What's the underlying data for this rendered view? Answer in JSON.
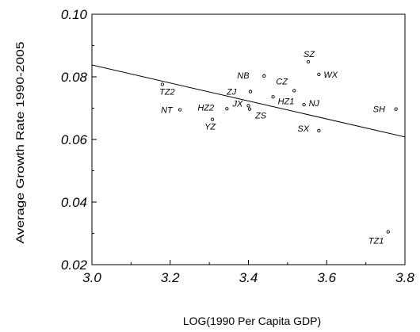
{
  "chart_data": {
    "type": "scatter",
    "title": "",
    "xlabel": "LOG(1990 Per Capita GDP)",
    "ylabel": "Average Growth Rate 1990-2005",
    "xlim": [
      3.0,
      3.8
    ],
    "ylim": [
      0.02,
      0.1
    ],
    "grid": false,
    "x_ticks": [
      "3.0",
      "3.2",
      "3.4",
      "3.6",
      "3.8"
    ],
    "y_ticks": [
      "0.02",
      "0.04",
      "0.06",
      "0.08",
      "0.10"
    ],
    "points": [
      {
        "label": "SZ",
        "x": 3.553,
        "y": 0.0848
      },
      {
        "label": "WX",
        "x": 3.58,
        "y": 0.0808
      },
      {
        "label": "NB",
        "x": 3.44,
        "y": 0.0803
      },
      {
        "label": "TZ2",
        "x": 3.18,
        "y": 0.0776
      },
      {
        "label": "CZ",
        "x": 3.517,
        "y": 0.0756
      },
      {
        "label": "ZJ",
        "x": 3.405,
        "y": 0.0753
      },
      {
        "label": "HZ1",
        "x": 3.463,
        "y": 0.0736
      },
      {
        "label": "NJ",
        "x": 3.542,
        "y": 0.0711
      },
      {
        "label": "JX",
        "x": 3.4,
        "y": 0.0708
      },
      {
        "label": "HZ2",
        "x": 3.345,
        "y": 0.0698
      },
      {
        "label": "ZS",
        "x": 3.403,
        "y": 0.0697
      },
      {
        "label": "SH",
        "x": 3.777,
        "y": 0.0697
      },
      {
        "label": "NT",
        "x": 3.225,
        "y": 0.0695
      },
      {
        "label": "YZ",
        "x": 3.308,
        "y": 0.0664
      },
      {
        "label": "SX",
        "x": 3.58,
        "y": 0.0628
      },
      {
        "label": "TZ1",
        "x": 3.757,
        "y": 0.0305
      }
    ],
    "fit_line": {
      "x": [
        3.0,
        3.8
      ],
      "y": [
        0.0838,
        0.0608
      ]
    }
  }
}
